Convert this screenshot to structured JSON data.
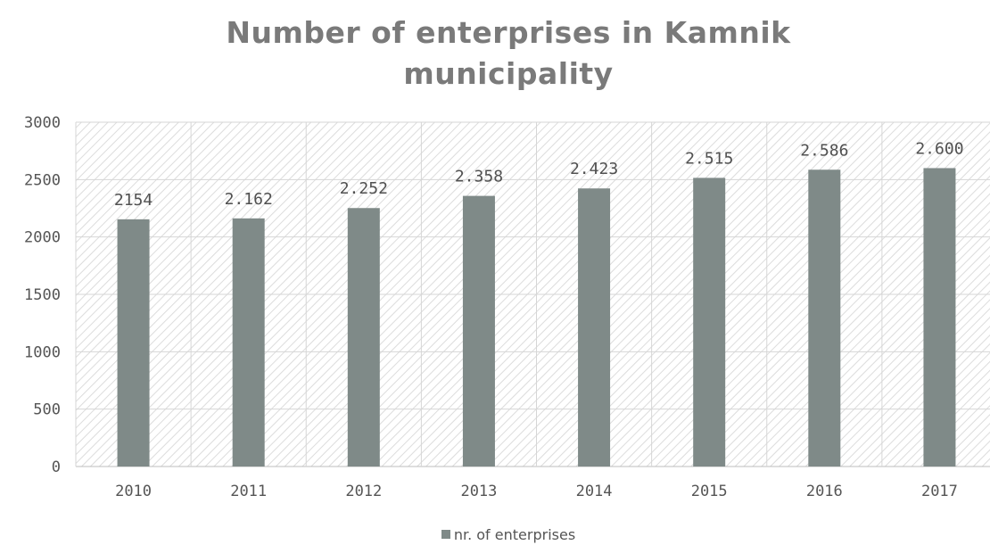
{
  "chart_data": {
    "type": "bar",
    "title_lines": [
      "Number of enterprises in Kamnik",
      "municipality"
    ],
    "categories": [
      "2010",
      "2011",
      "2012",
      "2013",
      "2014",
      "2015",
      "2016",
      "2017"
    ],
    "series": [
      {
        "name": "nr. of enterprises",
        "values": [
          2154,
          2162,
          2252,
          2358,
          2423,
          2515,
          2586,
          2600
        ],
        "labels": [
          "2154",
          "2.162",
          "2.252",
          "2.358",
          "2.423",
          "2.515",
          "2.586",
          "2.600"
        ],
        "color": "#7f8a88"
      }
    ],
    "ylim": [
      0,
      3000
    ],
    "yticks": [
      "0",
      "500",
      "1000",
      "1500",
      "2000",
      "2500",
      "3000"
    ],
    "xlabel": "",
    "ylabel": "",
    "grid": true,
    "legend_position": "bottom"
  }
}
